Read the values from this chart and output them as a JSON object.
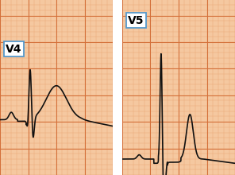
{
  "bg_color": "#F5C8A0",
  "grid_major_color": "#D4703A",
  "grid_minor_color": "#EBA878",
  "ecg_color": "#111111",
  "label_bg": "#ffffff",
  "label_border": "#5599cc",
  "label_text_color": "#000000",
  "outer_bg": "#ffffff",
  "labels": [
    "V4",
    "V5"
  ],
  "label_fontsize": 10,
  "minor_step": 0.05,
  "major_step": 0.25
}
